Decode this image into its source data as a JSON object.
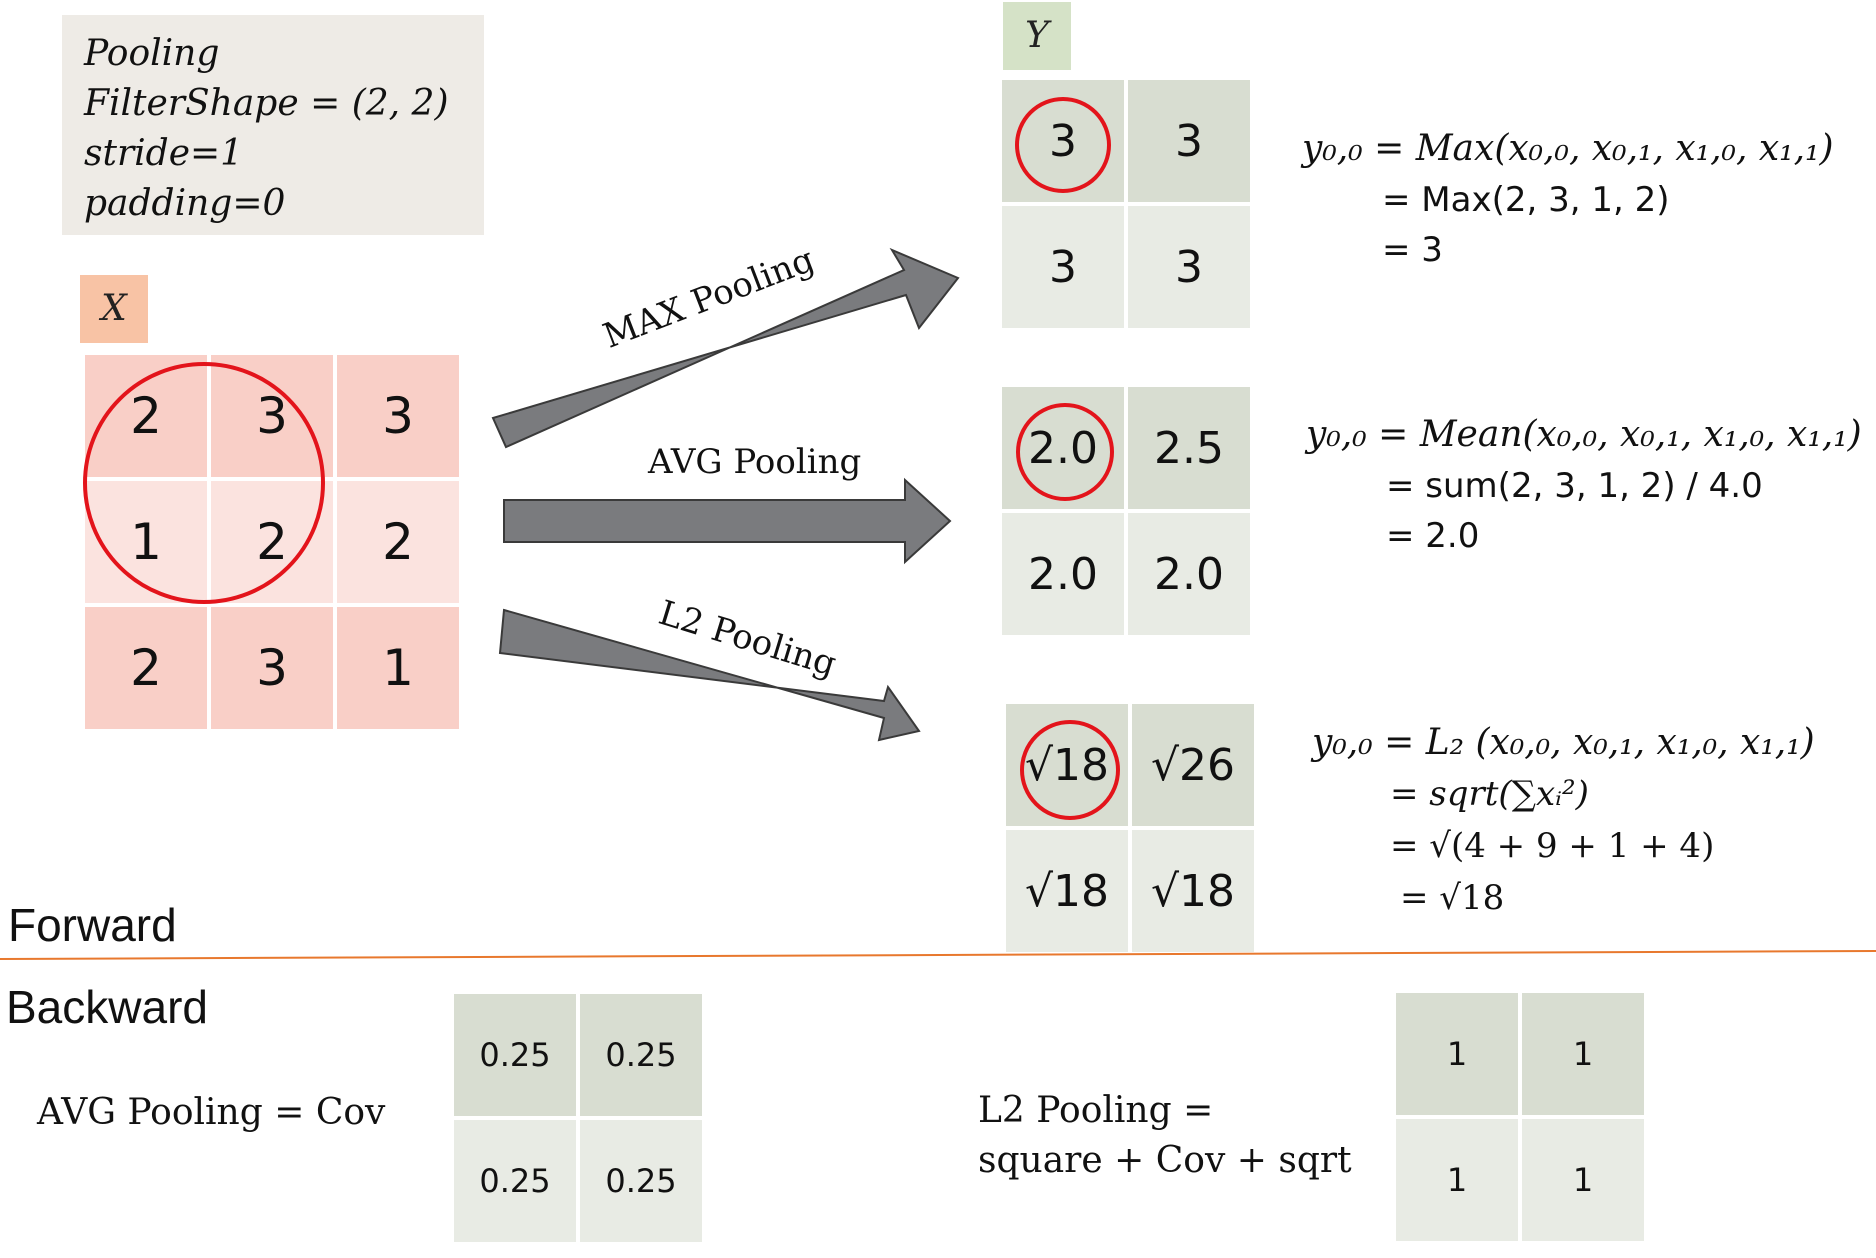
{
  "params": {
    "lines": [
      "Pooling",
      "FilterShape = (2, 2)",
      "stride=1",
      "padding=0"
    ]
  },
  "input": {
    "tag": "X",
    "color_tag": "#f8c3a5",
    "color_dark": "#f9cfc7",
    "color_light": "#fbe3df",
    "rows": [
      [
        "2",
        "3",
        "3"
      ],
      [
        "1",
        "2",
        "2"
      ],
      [
        "2",
        "3",
        "1"
      ]
    ]
  },
  "output": {
    "tag": "Y",
    "color_tag": "#d5e2c7",
    "max": [
      [
        "3",
        "3"
      ],
      [
        "3",
        "3"
      ]
    ],
    "avg": [
      [
        "2.0",
        "2.5"
      ],
      [
        "2.0",
        "2.0"
      ]
    ],
    "l2": [
      [
        "√18",
        "√26"
      ],
      [
        "√18",
        "√18"
      ]
    ]
  },
  "arrows": {
    "max_label": "MAX Pooling",
    "avg_label": "AVG Pooling",
    "l2_label": "L2 Pooling",
    "color": "#7a7b7e"
  },
  "formulas": {
    "max": [
      "y₀,₀ = Max(x₀,₀, x₀,₁, x₁,₀, x₁,₁)",
      "= Max(2, 3, 1, 2)",
      "= 3"
    ],
    "avg": [
      "y₀,₀ = Mean(x₀,₀, x₀,₁, x₁,₀, x₁,₁)",
      "= sum(2, 3, 1, 2) / 4.0",
      "= 2.0"
    ],
    "l2": [
      "y₀,₀ = L₂ (x₀,₀, x₀,₁, x₁,₀, x₁,₁)",
      "= sqrt(∑xᵢ²)",
      "= √(4 + 9 + 1 + 4)",
      "= √18"
    ]
  },
  "sections": {
    "forward": "Forward",
    "backward": "Backward"
  },
  "divider_color": "#e8782e",
  "backward": {
    "avg_label": "AVG Pooling = Cov",
    "avg_kernel": [
      [
        "0.25",
        "0.25"
      ],
      [
        "0.25",
        "0.25"
      ]
    ],
    "l2_label_1": "L2 Pooling =",
    "l2_label_2": "square + Cov + sqrt",
    "l2_kernel": [
      [
        "1",
        "1"
      ],
      [
        "1",
        "1"
      ]
    ]
  }
}
